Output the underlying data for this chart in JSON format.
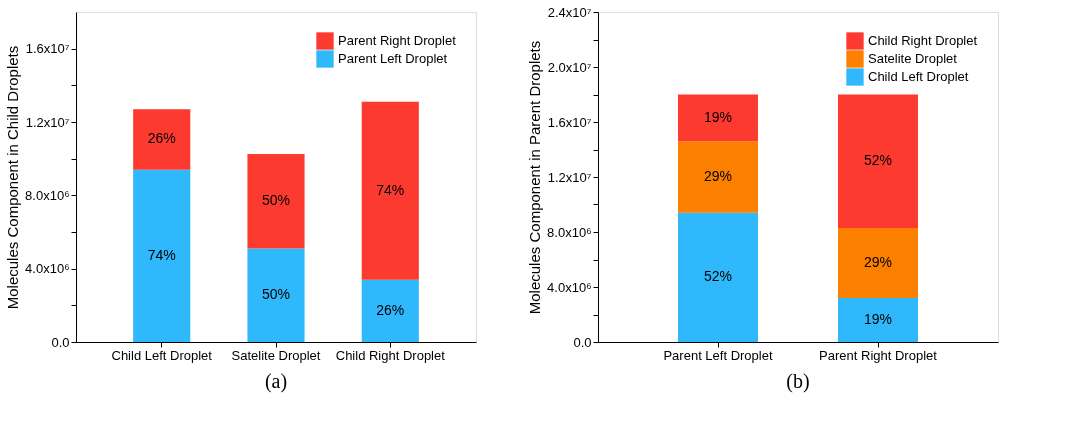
{
  "chart_data": [
    {
      "type": "bar",
      "title": "(a)",
      "ylabel": "Molecules Component in Child Droplets",
      "stacked": true,
      "legend": "top right",
      "grid": false,
      "categories": [
        "Child Left Droplet",
        "Satelite Droplet",
        "Child Right Droplet"
      ],
      "series": [
        {
          "name": "Parent Left Droplet",
          "color": "#2fb9fc",
          "values": [
            9400000,
            5100000,
            3400000
          ]
        },
        {
          "name": "Parent Right Droplet",
          "color": "#fc3a30",
          "values": [
            3300000,
            5150000,
            9700000
          ]
        }
      ],
      "annotations": [
        "74%",
        "50%",
        "26%",
        "26%",
        "50%",
        "74%"
      ],
      "ylim": [
        0,
        18000000
      ],
      "yticks": [
        {
          "value": 0,
          "label": "0.0"
        },
        {
          "value": 2000000,
          "label": null
        },
        {
          "value": 4000000,
          "label": "4.0x10⁶"
        },
        {
          "value": 6000000,
          "label": null
        },
        {
          "value": 8000000,
          "label": "8.0x10⁶"
        },
        {
          "value": 10000000,
          "label": null
        },
        {
          "value": 12000000,
          "label": "1.2x10⁷"
        },
        {
          "value": 14000000,
          "label": null
        },
        {
          "value": 16000000,
          "label": "1.6x10⁷"
        }
      ]
    },
    {
      "type": "bar",
      "title": "(b)",
      "ylabel": "Molecules Component in Parent Droplets",
      "stacked": true,
      "legend": "top right",
      "grid": false,
      "categories": [
        "Parent Left Droplet",
        "Parent Right Droplet"
      ],
      "series": [
        {
          "name": "Child Left Droplet",
          "color": "#2fb9fc",
          "values": [
            9400000,
            3200000
          ]
        },
        {
          "name": "Satelite Droplet",
          "color": "#fc7f00",
          "values": [
            5200000,
            5100000
          ]
        },
        {
          "name": "Child Right Droplet",
          "color": "#fc3a30",
          "values": [
            3400000,
            9700000
          ]
        }
      ],
      "annotations": [
        "52%",
        "19%",
        "29%",
        "29%",
        "19%",
        "52%"
      ],
      "ylim": [
        0,
        24000000
      ],
      "yticks": [
        {
          "value": 0,
          "label": "0.0"
        },
        {
          "value": 2000000,
          "label": null
        },
        {
          "value": 4000000,
          "label": "4.0x10⁶"
        },
        {
          "value": 6000000,
          "label": null
        },
        {
          "value": 8000000,
          "label": "8.0x10⁶"
        },
        {
          "value": 10000000,
          "label": null
        },
        {
          "value": 12000000,
          "label": "1.2x10⁷"
        },
        {
          "value": 14000000,
          "label": null
        },
        {
          "value": 16000000,
          "label": "1.6x10⁷"
        },
        {
          "value": 18000000,
          "label": null
        },
        {
          "value": 20000000,
          "label": "2.0x10⁷"
        },
        {
          "value": 22000000,
          "label": null
        },
        {
          "value": 24000000,
          "label": "2.4x10⁷"
        }
      ]
    }
  ]
}
